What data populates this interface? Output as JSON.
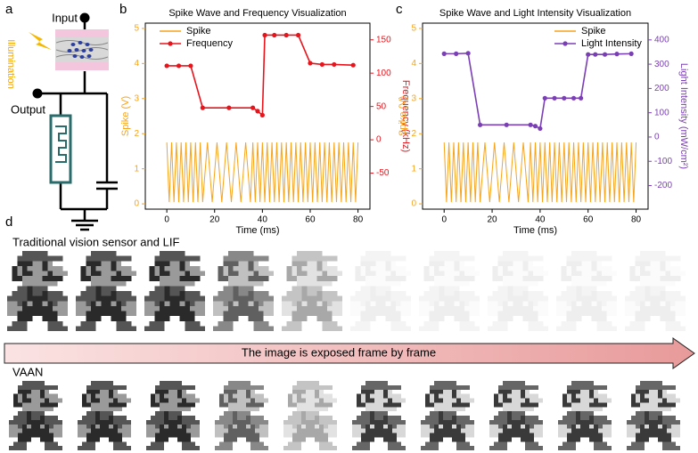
{
  "panel_labels": [
    "a",
    "b",
    "c",
    "d"
  ],
  "diagram": {
    "input": "Input",
    "output": "Output",
    "illumination": "Illumination"
  },
  "panel_d": {
    "row1_label": "Traditional vision sensor and LIF",
    "arrow_label": "The image is exposed frame by frame",
    "row2_label": "VAAN"
  },
  "chart_data": [
    {
      "type": "line",
      "title": "Spike Wave and Frequency Visualization",
      "xlabel": "Time (ms)",
      "ylabel": "Spike (V)",
      "y2label": "Frequency (kHz)",
      "xlim": [
        -9,
        85
      ],
      "xticks": [
        0,
        20,
        40,
        60,
        80
      ],
      "ylim": [
        -0.15,
        5.15
      ],
      "yticks": [
        0,
        1,
        2,
        3,
        4,
        5
      ],
      "y2lim": [
        -104,
        175
      ],
      "y2ticks": [
        -50,
        0,
        50,
        100,
        150
      ],
      "legend": "upper left",
      "series": [
        {
          "name": "Spike",
          "color": "#f7a41d",
          "axis": "y",
          "x": [
            0,
            1,
            2,
            3,
            4,
            5,
            6,
            7,
            8,
            9,
            10,
            11,
            12,
            13,
            14,
            15,
            17,
            19,
            21,
            23,
            25,
            27,
            29,
            31,
            33,
            35,
            36,
            37,
            38,
            39,
            40,
            41,
            42,
            43,
            44,
            45,
            46,
            47,
            48,
            49,
            50,
            51,
            52,
            53,
            54,
            55,
            56,
            57,
            58,
            59,
            60,
            61,
            62,
            63,
            64,
            65,
            66,
            67,
            68,
            69,
            70,
            71,
            72,
            73,
            74,
            75,
            76,
            77,
            78,
            79,
            80
          ],
          "values": [
            1.75,
            0.05,
            1.75,
            0.05,
            1.75,
            0.05,
            1.75,
            0.05,
            1.75,
            0.05,
            1.75,
            0.05,
            1.75,
            0.05,
            1.75,
            0.05,
            1.75,
            0.05,
            1.75,
            0.05,
            1.75,
            0.05,
            1.75,
            0.05,
            1.75,
            0.05,
            1.75,
            0.05,
            1.75,
            0.05,
            1.75,
            0.05,
            1.75,
            0.05,
            1.75,
            0.05,
            1.75,
            0.05,
            1.75,
            0.05,
            1.75,
            0.05,
            1.75,
            0.05,
            1.75,
            0.05,
            1.75,
            0.05,
            1.75,
            0.05,
            1.75,
            0.05,
            1.75,
            0.05,
            1.75,
            0.05,
            1.75,
            0.05,
            1.75,
            0.05,
            1.75,
            0.05,
            1.75,
            0.05,
            1.75,
            0.05,
            1.75,
            0.05,
            1.75,
            0.05,
            1.75
          ]
        },
        {
          "name": "Frequency",
          "color": "#e8141c",
          "axis": "y2",
          "marker": "o",
          "x": [
            0,
            5,
            10,
            15,
            26,
            36,
            38,
            40,
            41,
            45,
            50,
            55,
            60,
            65,
            70,
            78
          ],
          "values": [
            111,
            111,
            111,
            48,
            48,
            48,
            43,
            37,
            157,
            157,
            157,
            157,
            115,
            113,
            113,
            112
          ]
        }
      ]
    },
    {
      "type": "line",
      "title": "Spike Wave and Light Intensity Visualization",
      "xlabel": "Time (ms)",
      "ylabel": "Spike (V)",
      "y2label": "Light Intensity (mW/cm²)",
      "xlim": [
        -9,
        85
      ],
      "xticks": [
        0,
        20,
        40,
        60,
        80
      ],
      "ylim": [
        -0.15,
        5.15
      ],
      "yticks": [
        0,
        1,
        2,
        3,
        4,
        5
      ],
      "y2lim": [
        -297,
        469
      ],
      "y2ticks": [
        -200,
        -100,
        0,
        100,
        200,
        300,
        400
      ],
      "legend": "upper right",
      "series": [
        {
          "name": "Spike",
          "color": "#f7a41d",
          "axis": "y",
          "x": [
            0,
            1,
            2,
            3,
            4,
            5,
            6,
            7,
            8,
            9,
            10,
            11,
            12,
            13,
            14,
            15,
            17,
            19,
            21,
            23,
            25,
            27,
            29,
            31,
            33,
            35,
            36,
            37,
            38,
            39,
            40,
            41,
            42,
            43,
            44,
            45,
            46,
            47,
            48,
            49,
            50,
            51,
            52,
            53,
            54,
            55,
            56,
            57,
            58,
            59,
            60,
            61,
            62,
            63,
            64,
            65,
            66,
            67,
            68,
            69,
            70,
            71,
            72,
            73,
            74,
            75,
            76,
            77,
            78,
            79,
            80
          ],
          "values": [
            1.75,
            0.05,
            1.75,
            0.05,
            1.75,
            0.05,
            1.75,
            0.05,
            1.75,
            0.05,
            1.75,
            0.05,
            1.75,
            0.05,
            1.75,
            0.05,
            1.75,
            0.05,
            1.75,
            0.05,
            1.75,
            0.05,
            1.75,
            0.05,
            1.75,
            0.05,
            1.75,
            0.05,
            1.75,
            0.05,
            1.75,
            0.05,
            1.75,
            0.05,
            1.75,
            0.05,
            1.75,
            0.05,
            1.75,
            0.05,
            1.75,
            0.05,
            1.75,
            0.05,
            1.75,
            0.05,
            1.75,
            0.05,
            1.75,
            0.05,
            1.75,
            0.05,
            1.75,
            0.05,
            1.75,
            0.05,
            1.75,
            0.05,
            1.75,
            0.05,
            1.75,
            0.05,
            1.75,
            0.05,
            1.75,
            0.05,
            1.75,
            0.05,
            1.75,
            0.05,
            1.75
          ]
        },
        {
          "name": "Light Intensity",
          "color": "#7b3fb5",
          "axis": "y2",
          "marker": "o",
          "x": [
            0,
            5,
            10,
            15,
            26,
            36,
            38,
            40,
            42,
            46,
            50,
            54,
            57,
            60,
            63,
            67,
            72,
            78
          ],
          "values": [
            343,
            343,
            345,
            50,
            50,
            50,
            45,
            35,
            160,
            160,
            160,
            160,
            160,
            340,
            340,
            340,
            342,
            343
          ]
        }
      ]
    }
  ]
}
